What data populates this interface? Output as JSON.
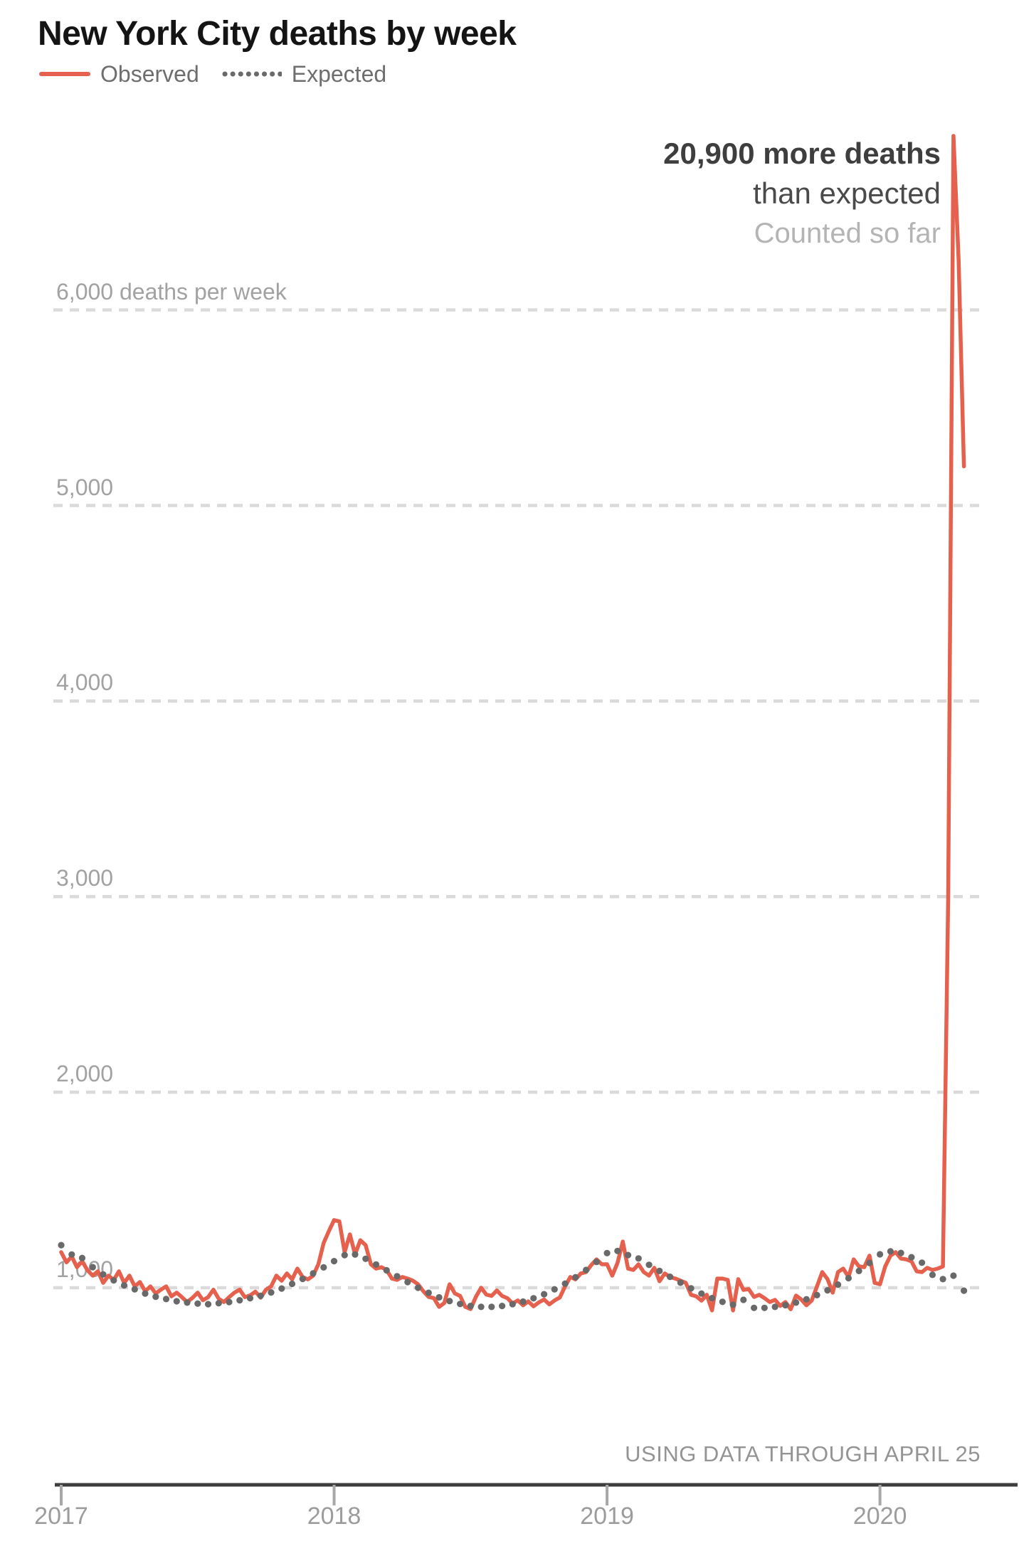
{
  "title": "New York City deaths by week",
  "legend": [
    {
      "label": "Observed",
      "type": "line",
      "color": "#e5604d"
    },
    {
      "label": "Expected",
      "type": "dots",
      "color": "#696969"
    }
  ],
  "annotation": {
    "headline": "20,900 more deaths",
    "sub": "than expected",
    "note": "Counted so far"
  },
  "caption": "USING DATA THROUGH APRIL 25",
  "y_axis": {
    "labels": [
      {
        "value": 6000,
        "text": "6,000 deaths per week"
      },
      {
        "value": 5000,
        "text": "5,000"
      },
      {
        "value": 4000,
        "text": "4,000"
      },
      {
        "value": 3000,
        "text": "3,000"
      },
      {
        "value": 2000,
        "text": "2,000"
      },
      {
        "value": 1000,
        "text": "1,000"
      }
    ]
  },
  "x_axis": {
    "years": [
      "2017",
      "2018",
      "2019",
      "2020"
    ]
  },
  "chart_data": {
    "type": "line",
    "title": "New York City deaths by week",
    "x_unit": "weeks, Jan 2017 through Apr 25 2020",
    "ylabel": "deaths per week",
    "ylim": [
      700,
      7100
    ],
    "gridlines": [
      1000,
      2000,
      3000,
      4000,
      5000,
      6000
    ],
    "grid_style": "dashed",
    "legend_position": "top-left",
    "annotation_text": "20,900 more deaths than expected — Counted so far",
    "peak_observed_value": 6890,
    "last_observed_value": 5200,
    "series": [
      {
        "name": "Observed",
        "style": "line",
        "color": "#e5604d",
        "values": [
          1182,
          1130,
          1160,
          1105,
          1135,
          1090,
          1062,
          1084,
          1025,
          1062,
          1040,
          1084,
          1025,
          1062,
          1007,
          1029,
          982,
          1007,
          971,
          990,
          1007,
          956,
          975,
          952,
          927,
          948,
          975,
          936,
          952,
          990,
          944,
          927,
          952,
          975,
          990,
          952,
          961,
          980,
          949,
          990,
          1007,
          1062,
          1036,
          1073,
          1043,
          1098,
          1055,
          1043,
          1062,
          1120,
          1229,
          1290,
          1346,
          1339,
          1182,
          1273,
          1171,
          1243,
          1218,
          1120,
          1098,
          1105,
          1091,
          1047,
          1040,
          1055,
          1047,
          1036,
          1018,
          982,
          953,
          947,
          902,
          922,
          1018,
          971,
          958,
          902,
          891,
          953,
          1000,
          965,
          958,
          986,
          958,
          947,
          920,
          935,
          910,
          930,
          905,
          925,
          940,
          915,
          935,
          950,
          1007,
          1055,
          1043,
          1073,
          1080,
          1116,
          1145,
          1120,
          1120,
          1062,
          1127,
          1236,
          1098,
          1091,
          1120,
          1080,
          1062,
          1102,
          1033,
          1073,
          1055,
          1047,
          1036,
          1025,
          964,
          956,
          934,
          964,
          884,
          1047,
          1047,
          1040,
          884,
          1044,
          989,
          993,
          953,
          964,
          947,
          927,
          938,
          907,
          927,
          890,
          960,
          940,
          910,
          935,
          1007,
          1080,
          1044,
          975,
          1080,
          1098,
          1055,
          1145,
          1109,
          1105,
          1164,
          1025,
          1018,
          1109,
          1164,
          1182,
          1149,
          1145,
          1135,
          1084,
          1080,
          1102,
          1091,
          1098,
          1109,
          3000,
          6890,
          6250,
          5200
        ]
      },
      {
        "name": "Expected",
        "style": "dotted",
        "color": "#696969",
        "values": [
          1218,
          1195,
          1170,
          1150,
          1152,
          1128,
          1105,
          1088,
          1068,
          1050,
          1038,
          1024,
          1012,
          1000,
          992,
          981,
          970,
          962,
          954,
          948,
          942,
          936,
          931,
          926,
          924,
          921,
          919,
          917,
          916,
          918,
          921,
          924,
          927,
          931,
          936,
          941,
          946,
          952,
          959,
          967,
          976,
          986,
          996,
          1007,
          1020,
          1032,
          1045,
          1058,
          1073,
          1088,
          1104,
          1120,
          1136,
          1152,
          1167,
          1176,
          1170,
          1160,
          1148,
          1134,
          1119,
          1104,
          1089,
          1074,
          1059,
          1044,
          1029,
          1014,
          1000,
          987,
          974,
          962,
          951,
          941,
          932,
          924,
          917,
          911,
          907,
          904,
          902,
          901,
          902,
          904,
          907,
          911,
          916,
          922,
          929,
          937,
          946,
          956,
          967,
          979,
          992,
          1006,
          1021,
          1037,
          1054,
          1072,
          1091,
          1111,
          1132,
          1154,
          1177,
          1193,
          1188,
          1182,
          1167,
          1189,
          1150,
          1133,
          1117,
          1101,
          1086,
          1071,
          1056,
          1041,
          1026,
          1011,
          997,
          983,
          970,
          958,
          947,
          937,
          928,
          920,
          913,
          907,
          938,
          900,
          897,
          896,
          897,
          899,
          902,
          906,
          911,
          917,
          924,
          932,
          941,
          951,
          962,
          974,
          987,
          1001,
          1016,
          1032,
          1049,
          1067,
          1086,
          1106,
          1127,
          1149,
          1171,
          1207,
          1186,
          1193,
          1178,
          1168,
          1156,
          1142,
          1128,
          1084,
          1066,
          1080,
          1044,
          1025,
          1062,
          1000,
          985
        ]
      }
    ]
  }
}
